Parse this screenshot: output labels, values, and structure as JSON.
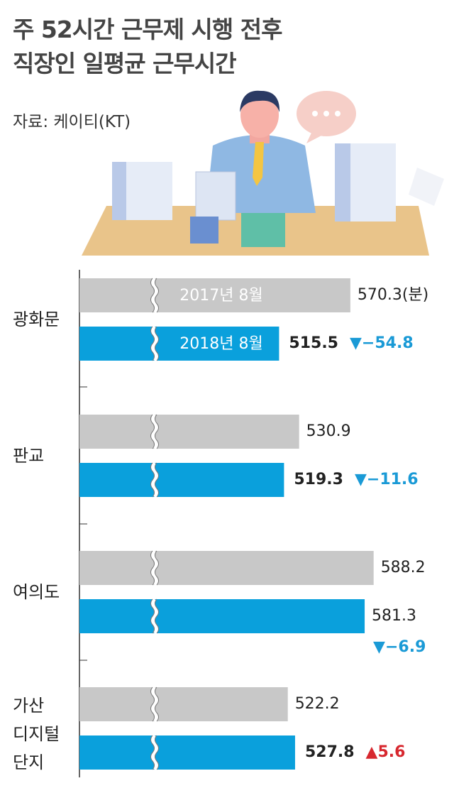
{
  "chart_data": {
    "type": "bar",
    "orientation": "horizontal",
    "title": "주 52시간 근무제 시행 전후\n직장인 일평균 근무시간",
    "source": "자료: 케이티(KT)",
    "categories": [
      "광화문",
      "판교",
      "여의도",
      "가산\n디지털\n단지"
    ],
    "series": [
      {
        "name": "2017년 8월",
        "color": "#c8c8c8",
        "values": [
          570.3,
          530.9,
          588.2,
          522.2
        ],
        "value_labels": [
          "570.3(분)",
          "530.9",
          "588.2",
          "522.2"
        ]
      },
      {
        "name": "2018년 8월",
        "color": "#0aa0dc",
        "values": [
          515.5,
          519.3,
          581.3,
          527.8
        ]
      }
    ],
    "changes": {
      "values": [
        -54.8,
        -11.6,
        -6.9,
        5.6
      ],
      "value_labels": [
        "▼−54.8",
        "▼−11.6",
        "▼−6.9",
        "▲5.6"
      ],
      "down_color": "#1a9ad6",
      "up_color": "#d7282f"
    },
    "xlim": [
      362,
      650
    ],
    "axis_break": true
  }
}
